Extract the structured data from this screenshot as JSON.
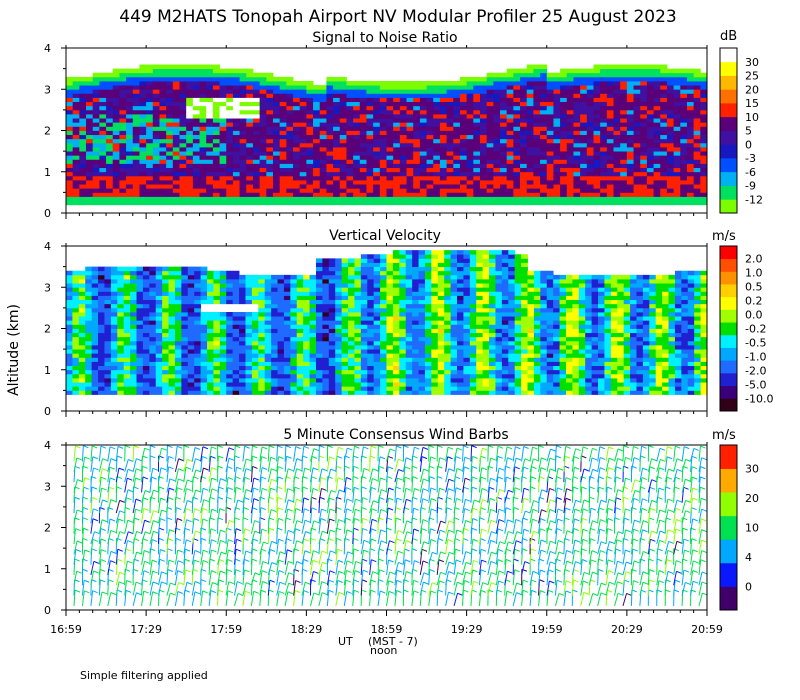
{
  "title": "449 M2HATS Tonopah Airport NV Modular Profiler 25 August 2023",
  "ylabel": "Altitude (km)",
  "xlabel": "UT",
  "xlabel_local": "(MST - 7)",
  "noon_label": "noon",
  "footnote": "Simple filtering applied",
  "time_ticks": [
    "16:59",
    "17:29",
    "17:59",
    "18:29",
    "18:59",
    "19:29",
    "19:59",
    "20:29",
    "20:59"
  ],
  "colors": {
    "snr": [
      "#7cfc00",
      "#00e060",
      "#00b0f0",
      "#0050ff",
      "#1818c0",
      "#4010a0",
      "#5a0078",
      "#ff2000",
      "#ff7000",
      "#ffb800",
      "#ffff00",
      "#ffffff"
    ],
    "velocity": [
      "#300018",
      "#3a007a",
      "#2020d0",
      "#1f6bff",
      "#00a8ff",
      "#00f0ff",
      "#00e000",
      "#a0ff00",
      "#ffff00",
      "#ffd000",
      "#ff9000",
      "#ff5000",
      "#ff0000"
    ],
    "wind": [
      "#40006a",
      "#0a18ff",
      "#00a8ff",
      "#00e050",
      "#90ff00",
      "#ffaa00",
      "#ff2000"
    ]
  },
  "chart_data": [
    {
      "type": "heatmap",
      "title": "Signal to Noise Ratio",
      "unit": "dB",
      "ylim": [
        0,
        4
      ],
      "yticks": [
        "0",
        "1",
        "2",
        "3",
        "4"
      ],
      "colorbar_ticks": [
        "-12",
        "-9",
        "-6",
        "-3",
        "0",
        "5",
        "10",
        "15",
        "20",
        "25",
        "30"
      ]
    },
    {
      "type": "heatmap",
      "title": "Vertical Velocity",
      "unit": "m/s",
      "ylim": [
        0,
        4
      ],
      "yticks": [
        "0",
        "1",
        "2",
        "3",
        "4"
      ],
      "colorbar_ticks": [
        "-10.0",
        "-5.0",
        "-2.0",
        "-1.0",
        "-0.5",
        "-0.2",
        "0.0",
        "0.2",
        "0.5",
        "1.0",
        "2.0"
      ]
    },
    {
      "type": "scatter",
      "title": "5 Minute Consensus Wind Barbs",
      "unit": "m/s",
      "ylim": [
        0,
        4
      ],
      "yticks": [
        "0",
        "1",
        "2",
        "3",
        "4"
      ],
      "colorbar_ticks": [
        "0",
        "4",
        "10",
        "20",
        "30"
      ]
    }
  ]
}
